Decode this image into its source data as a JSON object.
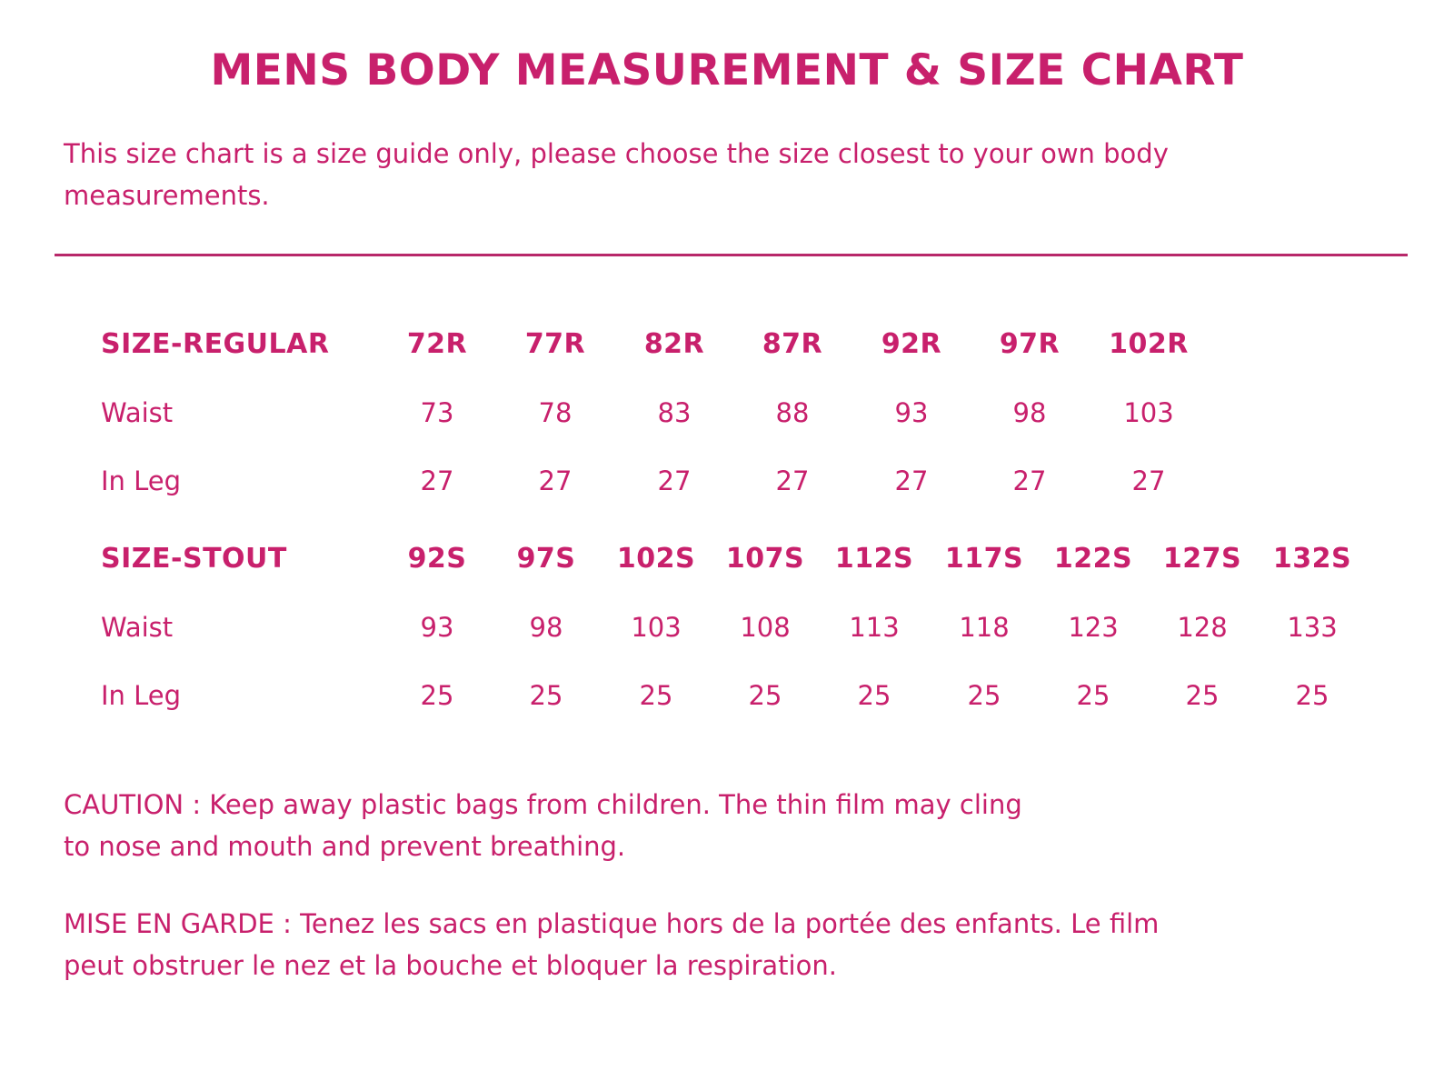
{
  "title": "MENS BODY MEASUREMENT & SIZE CHART",
  "intro_line1": "This size chart is a size guide only, please choose the size closest to your own body",
  "intro_line2": "measurements.",
  "regular": {
    "header": "SIZE-REGULAR",
    "sizes": [
      "72R",
      "77R",
      "82R",
      "87R",
      "92R",
      "97R",
      "102R"
    ],
    "waist_label": "Waist",
    "waist": [
      "73",
      "78",
      "83",
      "88",
      "93",
      "98",
      "103"
    ],
    "inleg_label": "In Leg",
    "inleg": [
      "27",
      "27",
      "27",
      "27",
      "27",
      "27",
      "27"
    ]
  },
  "stout": {
    "header": "SIZE-STOUT",
    "sizes": [
      "92S",
      "97S",
      "102S",
      "107S",
      "112S",
      "117S",
      "122S",
      "127S",
      "132S"
    ],
    "waist_label": "Waist",
    "waist": [
      "93",
      "98",
      "103",
      "108",
      "113",
      "118",
      "123",
      "128",
      "133"
    ],
    "inleg_label": "In Leg",
    "inleg": [
      "25",
      "25",
      "25",
      "25",
      "25",
      "25",
      "25",
      "25",
      "25"
    ]
  },
  "caution_line1": "CAUTION : Keep away plastic bags from children. The thin film may cling",
  "caution_line2": "to nose and mouth and prevent breathing.",
  "mise_line1": "MISE EN GARDE : Tenez les sacs en plastique hors de la portée des enfants. Le film",
  "mise_line2": "peut obstruer le nez et la bouche et bloquer la respiration.",
  "colors": {
    "text": "#c8206c",
    "rule": "#b8286a",
    "background": "#ffffff"
  }
}
